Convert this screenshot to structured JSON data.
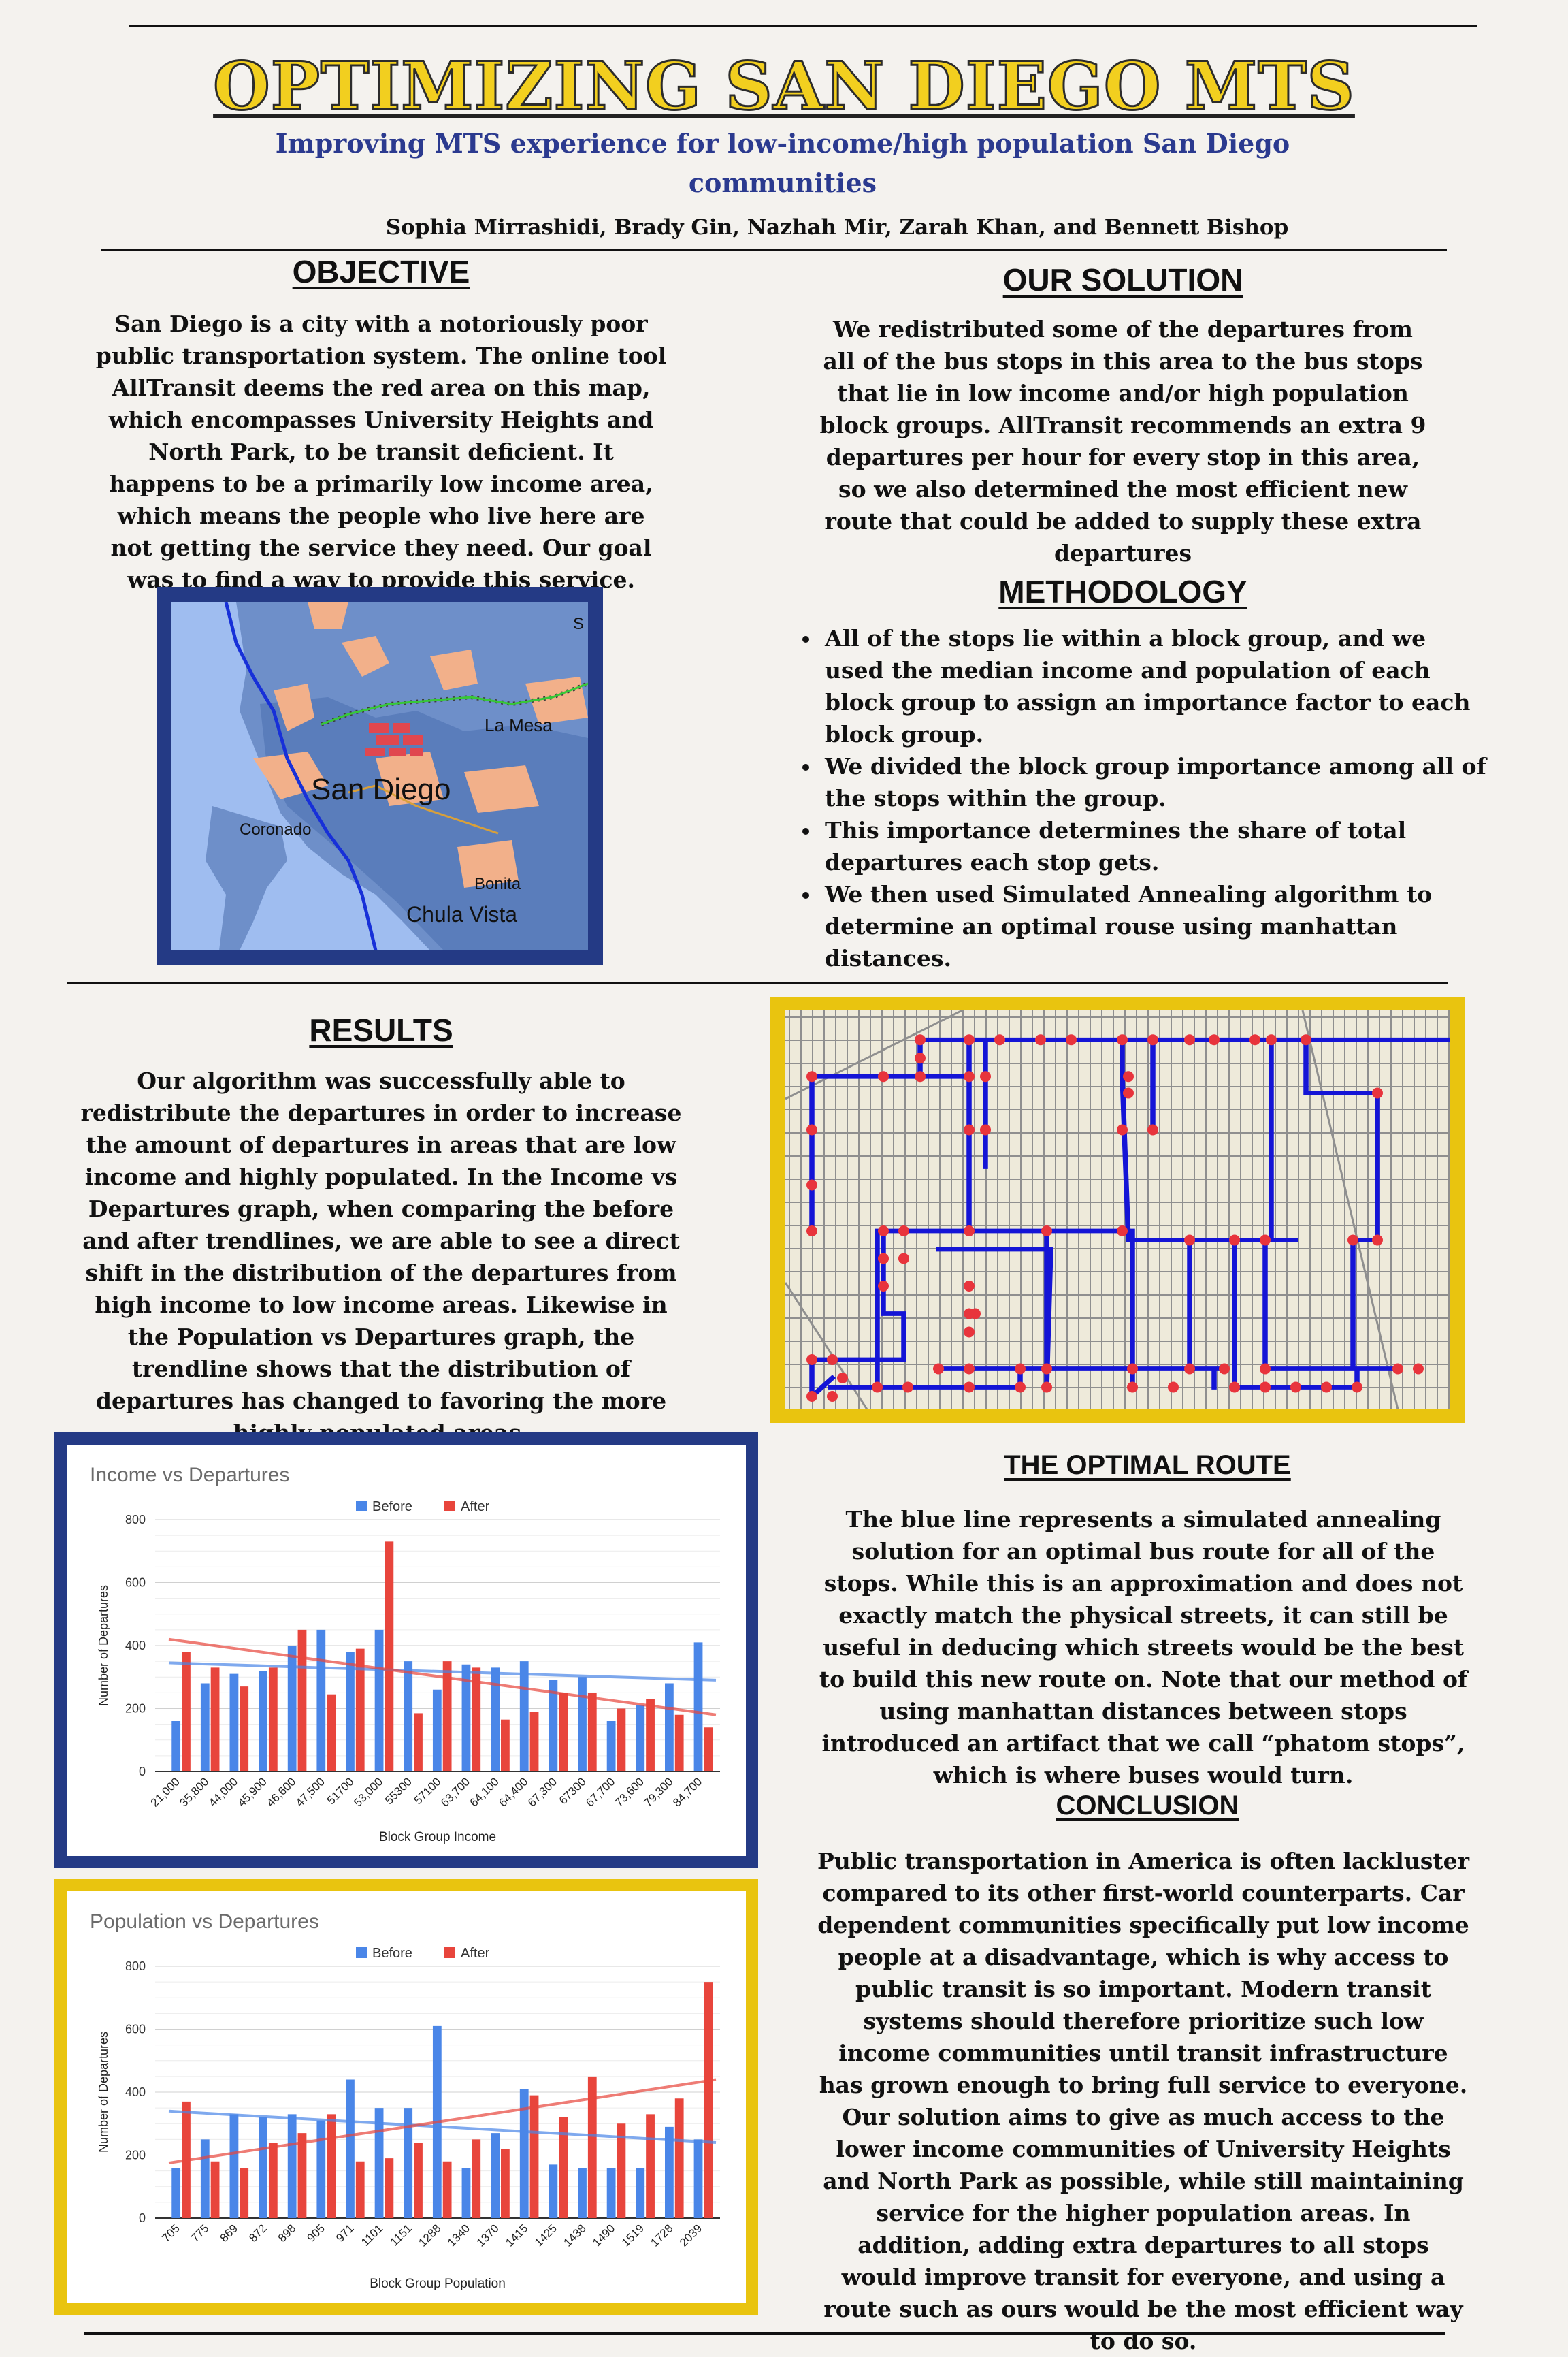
{
  "header": {
    "title": "OPTIMIZING SAN DIEGO MTS",
    "subtitle": "Improving MTS experience for low-income/high population San Diego communities",
    "authors": "Sophia Mirrashidi, Brady Gin, Nazhah Mir, Zarah Khan, and Bennett Bishop"
  },
  "objective": {
    "heading": "OBJECTIVE",
    "text": "San Diego is a city with a notoriously poor public transportation system. The online tool AllTransit deems the red area on this map, which encompasses University Heights and North Park, to be transit deficient. It happens to be a primarily low income area, which means the people who live here are not getting the service they need. Our goal was to find a way to provide this service."
  },
  "map": {
    "labels": [
      "San Diego",
      "La Mesa",
      "Coronado",
      "Bonita",
      "Chula Vista",
      "S"
    ]
  },
  "solution": {
    "heading": "OUR SOLUTION",
    "text": "We redistributed some of the departures from all of the bus stops in this area to the bus stops that lie in low income and/or high population block groups. AllTransit recommends an extra 9 departures per hour for every stop in this area, so we also determined the most efficient new route that could be added to supply these extra departures"
  },
  "methodology": {
    "heading": "METHODOLOGY",
    "bullets": [
      "All of the stops lie within a block group, and we used the median income and population of each block group to assign an importance factor to each block group.",
      "We divided the block group importance among all of the stops within the group.",
      "This importance determines the share of total departures each stop gets.",
      " We then used Simulated Annealing algorithm to determine an optimal rouse using manhattan distances."
    ]
  },
  "results": {
    "heading": "RESULTS",
    "text": "Our algorithm was successfully able to redistribute the departures in order to increase the amount of departures in areas that are low income and highly populated.  In the Income vs Departures graph, when comparing the before and after trendlines, we are  able to see a direct shift in the distribution of the departures from high income to low income areas. Likewise in the Population vs Departures graph, the trendline shows that the distribution of departures has changed to favoring the more highly populated areas."
  },
  "optimal_route": {
    "heading": "THE OPTIMAL ROUTE",
    "text": "The blue line represents a simulated annealing solution for an optimal bus route for all of the stops. While this is an approximation and does not exactly match the physical streets, it can still be useful in deducing which streets would be the best to build this new route on. Note that our method of using manhattan distances between stops introduced an artifact that we call “phatom stops”, which is where buses would turn."
  },
  "conclusion": {
    "heading": "CONCLUSION",
    "text": "Public transportation in America is often lackluster compared to its other first-world counterparts. Car dependent communities specifically put low income people at a disadvantage, which is why access to public transit is so important. Modern transit systems should therefore prioritize such low income communities until transit infrastructure has grown enough to bring full service to everyone. Our solution aims to give as much access to the lower income communities of University Heights and North Park as possible, while still maintaining service for the higher population areas. In addition, adding extra departures to all stops would improve transit for everyone, and using a route such as ours would be the most efficient way to do so."
  },
  "colors": {
    "before": "#4a86e8",
    "after": "#e8453c",
    "navy": "#243a85",
    "gold": "#e9c40f"
  },
  "chart_data": [
    {
      "type": "bar",
      "title": "Income vs Departures",
      "xlabel": "Block Group Income",
      "ylabel": "Number of Departures",
      "ylim": [
        0,
        800
      ],
      "yticks": [
        0,
        200,
        400,
        600,
        800
      ],
      "legend": "top-center",
      "grid": true,
      "categories": [
        "21,000",
        "35,800",
        "44,000",
        "45,900",
        "46,600",
        "47,500",
        "51700",
        "53,000",
        "55300",
        "57100",
        "63,700",
        "64,100",
        "64,400",
        "67,300",
        "67300",
        "67,700",
        "73,600",
        "79,300",
        "84,700"
      ],
      "series": [
        {
          "name": "Before",
          "values": [
            160,
            280,
            310,
            320,
            400,
            450,
            380,
            450,
            350,
            260,
            340,
            330,
            350,
            290,
            300,
            160,
            210,
            280,
            410
          ]
        },
        {
          "name": "After",
          "values": [
            380,
            330,
            270,
            330,
            450,
            245,
            390,
            730,
            185,
            350,
            330,
            165,
            190,
            250,
            250,
            200,
            230,
            180,
            140
          ]
        }
      ],
      "trendlines": {
        "Before": [
          345,
          290
        ],
        "After": [
          420,
          180
        ]
      }
    },
    {
      "type": "bar",
      "title": "Population vs Departures",
      "xlabel": "Block Group Population",
      "ylabel": "Number of Departures",
      "ylim": [
        0,
        800
      ],
      "yticks": [
        0,
        200,
        400,
        600,
        800
      ],
      "legend": "top-center",
      "grid": true,
      "categories": [
        "705",
        "775",
        "869",
        "872",
        "898",
        "905",
        "971",
        "1101",
        "1151",
        "1288",
        "1340",
        "1370",
        "1415",
        "1425",
        "1438",
        "1490",
        "1519",
        "1728",
        "2039"
      ],
      "series": [
        {
          "name": "Before",
          "values": [
            160,
            250,
            330,
            320,
            330,
            310,
            440,
            350,
            350,
            610,
            160,
            270,
            410,
            170,
            160,
            160,
            160,
            290,
            250
          ]
        },
        {
          "name": "After",
          "values": [
            370,
            180,
            160,
            240,
            270,
            330,
            180,
            190,
            240,
            180,
            250,
            220,
            390,
            320,
            450,
            300,
            330,
            380,
            750
          ]
        }
      ],
      "trendlines": {
        "Before": [
          340,
          240
        ],
        "After": [
          175,
          440
        ]
      }
    }
  ]
}
